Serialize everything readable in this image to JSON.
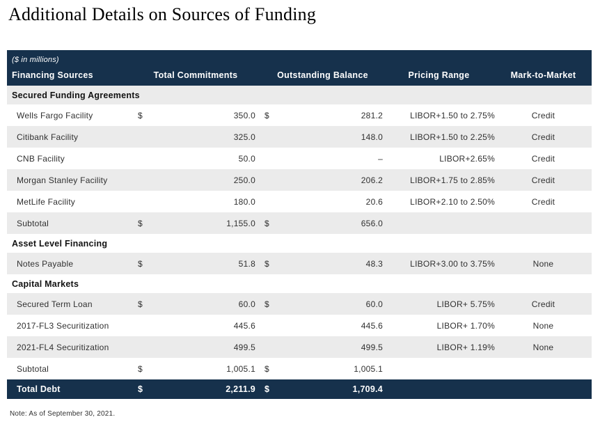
{
  "page": {
    "title": "Additional Details on Sources of Funding",
    "note": "Note: As of September 30, 2021."
  },
  "colors": {
    "navy": "#16314C",
    "stripe": "#EBEBEB"
  },
  "table": {
    "units_label": "($ in millions)",
    "headers": {
      "financing_sources": "Financing Sources",
      "total_commitments": "Total Commitments",
      "outstanding_balance": "Outstanding Balance",
      "pricing_range": "Pricing Range",
      "mark_to_market": "Mark-to-Market"
    },
    "rows": [
      {
        "type": "section",
        "label": "Secured Funding Agreements",
        "shade": true
      },
      {
        "type": "data",
        "label": "Wells Fargo Facility",
        "cur1": "$",
        "commitment": "350.0",
        "cur2": "$",
        "balance": "281.2",
        "pricing": "LIBOR+1.50 to 2.75%",
        "mark": "Credit",
        "shade": false
      },
      {
        "type": "data",
        "label": "Citibank Facility",
        "cur1": "",
        "commitment": "325.0",
        "cur2": "",
        "balance": "148.0",
        "pricing": "LIBOR+1.50 to 2.25%",
        "mark": "Credit",
        "shade": true
      },
      {
        "type": "data",
        "label": "CNB Facility",
        "cur1": "",
        "commitment": "50.0",
        "cur2": "",
        "balance": "–",
        "pricing": "LIBOR+2.65%",
        "mark": "Credit",
        "shade": false
      },
      {
        "type": "data",
        "label": "Morgan Stanley Facility",
        "cur1": "",
        "commitment": "250.0",
        "cur2": "",
        "balance": "206.2",
        "pricing": "LIBOR+1.75 to 2.85%",
        "mark": "Credit",
        "shade": true
      },
      {
        "type": "data",
        "label": "MetLife Facility",
        "cur1": "",
        "commitment": "180.0",
        "cur2": "",
        "balance": "20.6",
        "pricing": "LIBOR+2.10 to 2.50%",
        "mark": "Credit",
        "shade": false
      },
      {
        "type": "data",
        "label": "Subtotal",
        "cur1": "$",
        "commitment": "1,155.0",
        "cur2": "$",
        "balance": "656.0",
        "pricing": "",
        "mark": "",
        "shade": true
      },
      {
        "type": "section",
        "label": "Asset Level Financing",
        "shade": false
      },
      {
        "type": "data",
        "label": "Notes Payable",
        "cur1": "$",
        "commitment": "51.8",
        "cur2": "$",
        "balance": "48.3",
        "pricing": "LIBOR+3.00 to 3.75%",
        "mark": "None",
        "shade": true
      },
      {
        "type": "section",
        "label": "Capital Markets",
        "shade": false
      },
      {
        "type": "data",
        "label": "Secured Term Loan",
        "cur1": "$",
        "commitment": "60.0",
        "cur2": "$",
        "balance": "60.0",
        "pricing": "LIBOR+ 5.75%",
        "mark": "Credit",
        "shade": true
      },
      {
        "type": "data",
        "label": "2017-FL3 Securitization",
        "cur1": "",
        "commitment": "445.6",
        "cur2": "",
        "balance": "445.6",
        "pricing": "LIBOR+ 1.70%",
        "mark": "None",
        "shade": false
      },
      {
        "type": "data",
        "label": "2021-FL4 Securitization",
        "cur1": "",
        "commitment": "499.5",
        "cur2": "",
        "balance": "499.5",
        "pricing": "LIBOR+ 1.19%",
        "mark": "None",
        "shade": true
      },
      {
        "type": "data",
        "label": "Subtotal",
        "cur1": "$",
        "commitment": "1,005.1",
        "cur2": "$",
        "balance": "1,005.1",
        "pricing": "",
        "mark": "",
        "shade": false
      },
      {
        "type": "total",
        "label": "Total Debt",
        "cur1": "$",
        "commitment": "2,211.9",
        "cur2": "$",
        "balance": "1,709.4",
        "pricing": "",
        "mark": "",
        "shade": false
      }
    ]
  }
}
